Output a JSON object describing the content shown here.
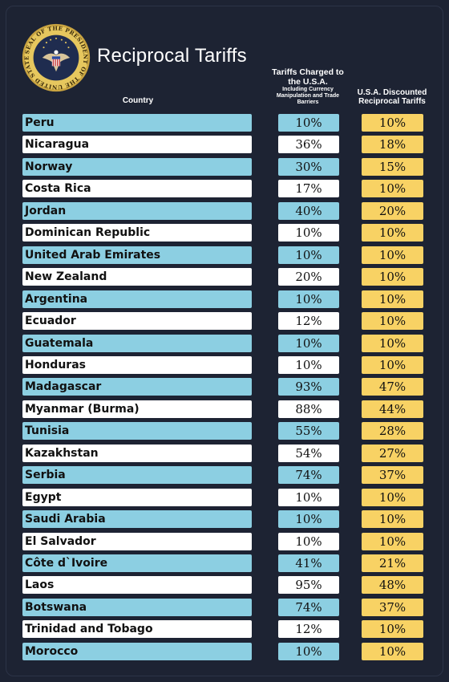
{
  "header": {
    "title": "Reciprocal Tariffs",
    "col_country": "Country",
    "col_charged": "Tariffs Charged to the U.S.A.",
    "col_charged_sub": "Including Currency Manipulation and Trade Barriers",
    "col_discounted": "U.S.A. Discounted Reciprocal Tariffs",
    "seal_text": "SEAL OF THE PRESIDENT OF THE UNITED STATES"
  },
  "colors": {
    "background": "#1d2333",
    "row_blue": "#8ccfe2",
    "row_white": "#ffffff",
    "discount_yellow": "#f8d264"
  },
  "rows": [
    {
      "country": "Peru",
      "charged": "10%",
      "discounted": "10%"
    },
    {
      "country": "Nicaragua",
      "charged": "36%",
      "discounted": "18%"
    },
    {
      "country": "Norway",
      "charged": "30%",
      "discounted": "15%"
    },
    {
      "country": "Costa Rica",
      "charged": "17%",
      "discounted": "10%"
    },
    {
      "country": "Jordan",
      "charged": "40%",
      "discounted": "20%"
    },
    {
      "country": "Dominican Republic",
      "charged": "10%",
      "discounted": "10%"
    },
    {
      "country": "United Arab Emirates",
      "charged": "10%",
      "discounted": "10%"
    },
    {
      "country": "New Zealand",
      "charged": "20%",
      "discounted": "10%"
    },
    {
      "country": "Argentina",
      "charged": "10%",
      "discounted": "10%"
    },
    {
      "country": "Ecuador",
      "charged": "12%",
      "discounted": "10%"
    },
    {
      "country": "Guatemala",
      "charged": "10%",
      "discounted": "10%"
    },
    {
      "country": "Honduras",
      "charged": "10%",
      "discounted": "10%"
    },
    {
      "country": "Madagascar",
      "charged": "93%",
      "discounted": "47%"
    },
    {
      "country": "Myanmar (Burma)",
      "charged": "88%",
      "discounted": "44%"
    },
    {
      "country": "Tunisia",
      "charged": "55%",
      "discounted": "28%"
    },
    {
      "country": "Kazakhstan",
      "charged": "54%",
      "discounted": "27%"
    },
    {
      "country": "Serbia",
      "charged": "74%",
      "discounted": "37%"
    },
    {
      "country": "Egypt",
      "charged": "10%",
      "discounted": "10%"
    },
    {
      "country": "Saudi Arabia",
      "charged": "10%",
      "discounted": "10%"
    },
    {
      "country": "El Salvador",
      "charged": "10%",
      "discounted": "10%"
    },
    {
      "country": "Côte d`Ivoire",
      "charged": "41%",
      "discounted": "21%"
    },
    {
      "country": "Laos",
      "charged": "95%",
      "discounted": "48%"
    },
    {
      "country": "Botswana",
      "charged": "74%",
      "discounted": "37%"
    },
    {
      "country": "Trinidad and Tobago",
      "charged": "12%",
      "discounted": "10%"
    },
    {
      "country": "Morocco",
      "charged": "10%",
      "discounted": "10%"
    }
  ]
}
